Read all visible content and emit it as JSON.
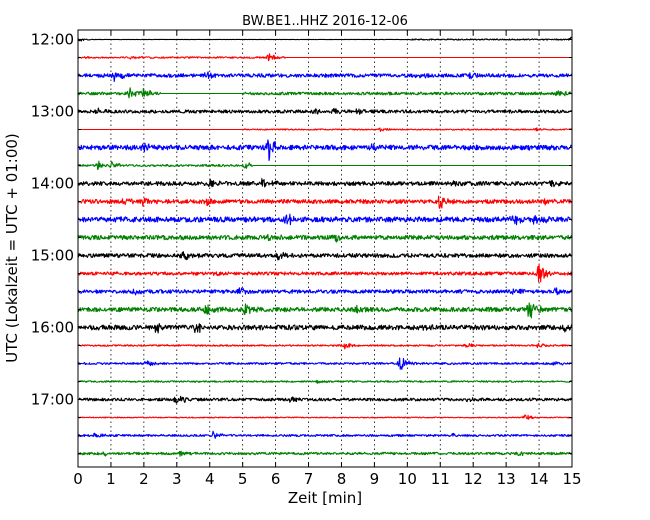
{
  "chart_data": {
    "type": "line",
    "subtype": "dayplot",
    "title": "BW.BE1..HHZ 2016-12-06",
    "xlabel": "Zeit  [min]",
    "ylabel": "UTC (Lokalzeit = UTC + 01:00)",
    "xlim": [
      0,
      15
    ],
    "x_ticks": [
      0,
      1,
      2,
      3,
      4,
      5,
      6,
      7,
      8,
      9,
      10,
      11,
      12,
      13,
      14,
      15
    ],
    "grid": "vertical-dotted",
    "y_tick_labels": [
      "12:00",
      "13:00",
      "14:00",
      "15:00",
      "16:00",
      "17:00"
    ],
    "color_cycle": [
      "#000000",
      "#ff0000",
      "#0000ff",
      "#008000"
    ],
    "series": [
      {
        "start": "12:00",
        "events": [
          {
            "t": 0.0,
            "a": 0.3
          },
          {
            "t": 15.0,
            "a": 0.3
          }
        ],
        "noise": 0.06,
        "data_from": 0.0,
        "quiet_until": 10.1
      },
      {
        "start": "12:15",
        "events": [
          {
            "t": 5.8,
            "a": 0.45
          },
          {
            "t": 1.6,
            "a": 0.2
          }
        ],
        "noise": 0.08,
        "data_from": 0.0,
        "data_to": 6.3
      },
      {
        "start": "12:30",
        "events": [
          {
            "t": 1.1,
            "a": 0.6
          },
          {
            "t": 3.9,
            "a": 0.3
          },
          {
            "t": 10.3,
            "a": 0.3
          },
          {
            "t": 11.9,
            "a": 0.35
          }
        ],
        "noise": 0.18
      },
      {
        "start": "12:45",
        "events": [
          {
            "t": 1.6,
            "a": 0.55
          },
          {
            "t": 2.0,
            "a": 0.5
          },
          {
            "t": 14.6,
            "a": 0.35
          }
        ],
        "noise": 0.14,
        "data_from": 0.0,
        "data_to": 2.5,
        "resume_from": 5.0
      },
      {
        "start": "13:00",
        "events": [
          {
            "t": 0.6,
            "a": 0.3
          },
          {
            "t": 7.2,
            "a": 0.35
          },
          {
            "t": 7.8,
            "a": 0.35
          },
          {
            "t": 8.5,
            "a": 0.3
          }
        ],
        "noise": 0.16
      },
      {
        "start": "13:15",
        "events": [
          {
            "t": 9.2,
            "a": 0.25
          },
          {
            "t": 13.9,
            "a": 0.2
          }
        ],
        "noise": 0.06,
        "data_from": 5.0
      },
      {
        "start": "13:30",
        "events": [
          {
            "t": 5.8,
            "a": 1.25
          },
          {
            "t": 2.0,
            "a": 0.3
          },
          {
            "t": 8.9,
            "a": 0.35
          },
          {
            "t": 13.4,
            "a": 0.3
          }
        ],
        "noise": 0.24
      },
      {
        "start": "13:45",
        "events": [
          {
            "t": 0.6,
            "a": 0.55
          },
          {
            "t": 1.0,
            "a": 0.4
          },
          {
            "t": 5.1,
            "a": 0.4
          }
        ],
        "noise": 0.1,
        "data_from": 0.0,
        "data_to": 5.3
      },
      {
        "start": "14:00",
        "events": [
          {
            "t": 4.0,
            "a": 0.35
          },
          {
            "t": 5.6,
            "a": 0.45
          },
          {
            "t": 6.0,
            "a": 0.4
          },
          {
            "t": 11.4,
            "a": 0.35
          },
          {
            "t": 14.4,
            "a": 0.4
          }
        ],
        "noise": 0.2
      },
      {
        "start": "14:15",
        "events": [
          {
            "t": 1.4,
            "a": 0.4
          },
          {
            "t": 2.0,
            "a": 0.4
          },
          {
            "t": 3.9,
            "a": 0.35
          },
          {
            "t": 11.0,
            "a": 0.65
          },
          {
            "t": 14.2,
            "a": 0.3
          }
        ],
        "noise": 0.2
      },
      {
        "start": "14:30",
        "events": [
          {
            "t": 6.3,
            "a": 0.7
          },
          {
            "t": 13.2,
            "a": 0.6
          },
          {
            "t": 13.9,
            "a": 0.55
          }
        ],
        "noise": 0.26
      },
      {
        "start": "14:45",
        "events": [
          {
            "t": 5.8,
            "a": 0.4
          },
          {
            "t": 7.8,
            "a": 0.4
          }
        ],
        "noise": 0.22
      },
      {
        "start": "15:00",
        "events": [
          {
            "t": 3.2,
            "a": 0.5
          },
          {
            "t": 6.1,
            "a": 0.4
          },
          {
            "t": 13.4,
            "a": 0.3
          }
        ],
        "noise": 0.2
      },
      {
        "start": "15:15",
        "events": [
          {
            "t": 14.0,
            "a": 1.05
          },
          {
            "t": 4.2,
            "a": 0.25
          }
        ],
        "noise": 0.16
      },
      {
        "start": "15:30",
        "events": [
          {
            "t": 1.7,
            "a": 0.45
          },
          {
            "t": 4.9,
            "a": 0.4
          },
          {
            "t": 13.2,
            "a": 0.35
          },
          {
            "t": 14.5,
            "a": 0.3
          }
        ],
        "noise": 0.18
      },
      {
        "start": "15:45",
        "events": [
          {
            "t": 3.9,
            "a": 0.8
          },
          {
            "t": 5.1,
            "a": 0.85
          },
          {
            "t": 8.4,
            "a": 0.4
          },
          {
            "t": 13.7,
            "a": 1.1
          }
        ],
        "noise": 0.22
      },
      {
        "start": "16:00",
        "events": [
          {
            "t": 2.4,
            "a": 0.5
          },
          {
            "t": 3.6,
            "a": 0.9
          },
          {
            "t": 14.8,
            "a": 0.5
          },
          {
            "t": 10.5,
            "a": 0.25
          }
        ],
        "noise": 0.24
      },
      {
        "start": "16:15",
        "events": [
          {
            "t": 8.1,
            "a": 0.35
          },
          {
            "t": 14.0,
            "a": 0.3
          },
          {
            "t": 11.8,
            "a": 0.3
          }
        ],
        "noise": 0.08
      },
      {
        "start": "16:30",
        "events": [
          {
            "t": 9.8,
            "a": 0.9
          },
          {
            "t": 14.4,
            "a": 0.3
          },
          {
            "t": 2.1,
            "a": 0.25
          }
        ],
        "noise": 0.1
      },
      {
        "start": "16:45",
        "events": [
          {
            "t": 7.3,
            "a": 0.2
          }
        ],
        "noise": 0.08
      },
      {
        "start": "17:00",
        "events": [
          {
            "t": 3.0,
            "a": 0.6
          },
          {
            "t": 6.5,
            "a": 0.35
          },
          {
            "t": 11.8,
            "a": 0.25
          }
        ],
        "noise": 0.14
      },
      {
        "start": "17:15",
        "events": [
          {
            "t": 13.6,
            "a": 0.35
          }
        ],
        "noise": 0.05
      },
      {
        "start": "17:30",
        "events": [
          {
            "t": 0.5,
            "a": 0.3
          },
          {
            "t": 4.1,
            "a": 0.4
          },
          {
            "t": 11.4,
            "a": 0.2
          }
        ],
        "noise": 0.1
      },
      {
        "start": "17:45",
        "events": [
          {
            "t": 0.8,
            "a": 0.25
          },
          {
            "t": 3.1,
            "a": 0.25
          },
          {
            "t": 13.4,
            "a": 0.2
          }
        ],
        "noise": 0.12
      }
    ]
  }
}
